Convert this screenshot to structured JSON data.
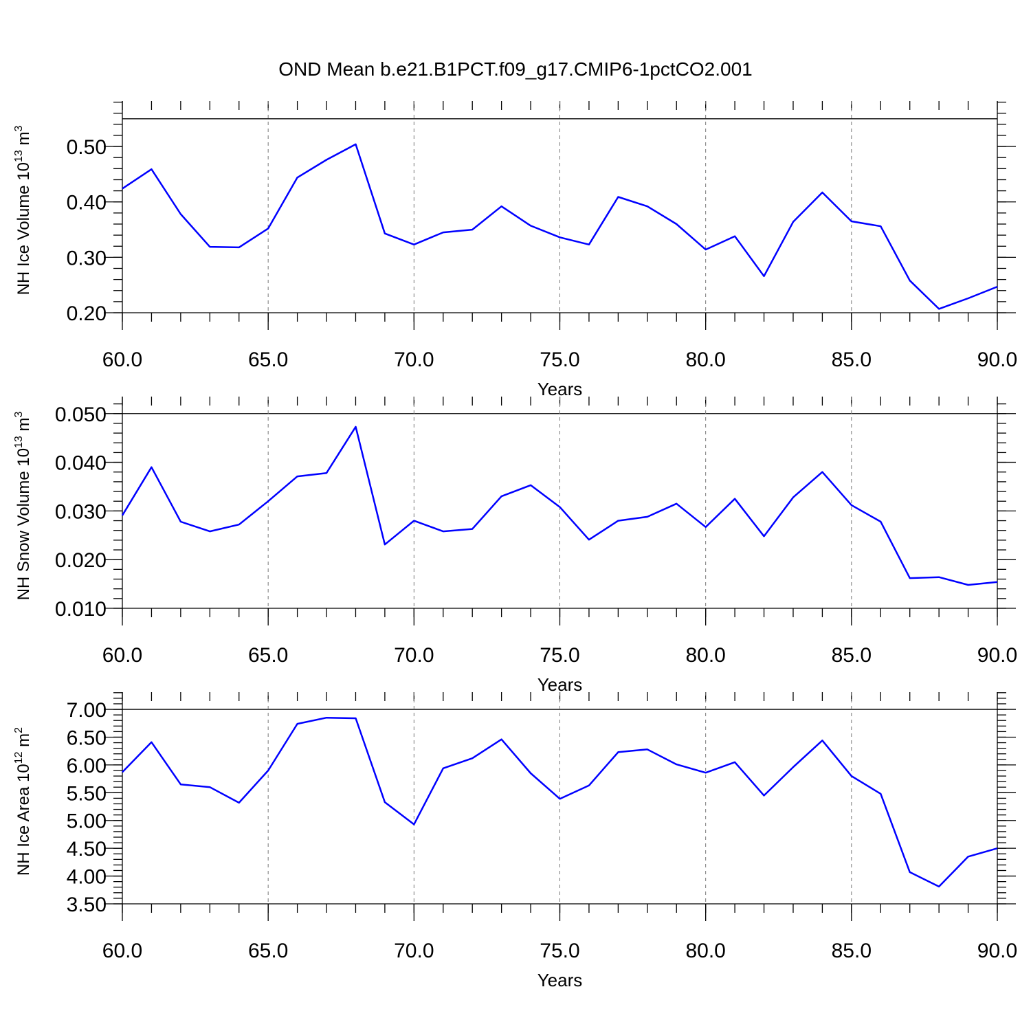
{
  "chart_data": [
    {
      "type": "line",
      "title": "OND Mean b.e21.B1PCT.f09_g17.CMIP6-1pctCO2.001",
      "xlabel": "Years",
      "ylabel_parts": [
        "NH Ice Volume 10",
        "13",
        " m",
        "3"
      ],
      "xlim": [
        60,
        90
      ],
      "xticks": [
        {
          "value": 60,
          "label": "60.0"
        },
        {
          "value": 65,
          "label": "65.0"
        },
        {
          "value": 70,
          "label": "70.0"
        },
        {
          "value": 75,
          "label": "75.0"
        },
        {
          "value": 80,
          "label": "80.0"
        },
        {
          "value": 85,
          "label": "85.0"
        },
        {
          "value": 90,
          "label": "90.0"
        }
      ],
      "ylim": [
        0.2,
        0.582
      ],
      "yticks": [
        {
          "value": 0.2,
          "label": "0.20"
        },
        {
          "value": 0.3,
          "label": "0.30"
        },
        {
          "value": 0.4,
          "label": "0.40"
        },
        {
          "value": 0.5,
          "label": "0.50"
        }
      ],
      "ref_line": 0.55,
      "grid": true,
      "x": [
        60,
        61,
        62,
        63,
        64,
        65,
        66,
        67,
        68,
        69,
        70,
        71,
        72,
        73,
        74,
        75,
        76,
        77,
        78,
        79,
        80,
        81,
        82,
        83,
        84,
        85,
        86,
        87,
        88,
        89,
        90
      ],
      "series": [
        {
          "color": "#0000ff",
          "values": [
            0.424,
            0.459,
            0.378,
            0.319,
            0.318,
            0.352,
            0.444,
            0.476,
            0.504,
            0.343,
            0.323,
            0.345,
            0.35,
            0.392,
            0.357,
            0.336,
            0.323,
            0.409,
            0.392,
            0.36,
            0.314,
            0.338,
            0.266,
            0.364,
            0.417,
            0.365,
            0.356,
            0.258,
            0.207,
            0.226,
            0.247
          ]
        }
      ]
    },
    {
      "type": "line",
      "xlabel": "Years",
      "ylabel_parts": [
        "NH Snow Volume 10",
        "13",
        " m",
        "3"
      ],
      "xlim": [
        60,
        90
      ],
      "xticks": [
        {
          "value": 60,
          "label": "60.0"
        },
        {
          "value": 65,
          "label": "65.0"
        },
        {
          "value": 70,
          "label": "70.0"
        },
        {
          "value": 75,
          "label": "75.0"
        },
        {
          "value": 80,
          "label": "80.0"
        },
        {
          "value": 85,
          "label": "85.0"
        },
        {
          "value": 90,
          "label": "90.0"
        }
      ],
      "ylim": [
        0.01,
        0.0535
      ],
      "yticks": [
        {
          "value": 0.01,
          "label": "0.010"
        },
        {
          "value": 0.02,
          "label": "0.020"
        },
        {
          "value": 0.03,
          "label": "0.030"
        },
        {
          "value": 0.04,
          "label": "0.040"
        },
        {
          "value": 0.05,
          "label": "0.050"
        }
      ],
      "ref_line": 0.05,
      "grid": true,
      "x": [
        60,
        61,
        62,
        63,
        64,
        65,
        66,
        67,
        68,
        69,
        70,
        71,
        72,
        73,
        74,
        75,
        76,
        77,
        78,
        79,
        80,
        81,
        82,
        83,
        84,
        85,
        86,
        87,
        88,
        89,
        90
      ],
      "series": [
        {
          "color": "#0000ff",
          "values": [
            0.0291,
            0.039,
            0.0278,
            0.0258,
            0.0272,
            0.032,
            0.0371,
            0.0378,
            0.0473,
            0.0231,
            0.028,
            0.0258,
            0.0263,
            0.033,
            0.0353,
            0.0308,
            0.0241,
            0.028,
            0.0288,
            0.0315,
            0.0267,
            0.0325,
            0.0248,
            0.0328,
            0.038,
            0.0312,
            0.0278,
            0.0162,
            0.0164,
            0.0148,
            0.0154
          ]
        }
      ]
    },
    {
      "type": "line",
      "xlabel": "Years",
      "ylabel_parts": [
        "NH Ice Area 10",
        "12",
        " m",
        "2"
      ],
      "xlim": [
        60,
        90
      ],
      "xticks": [
        {
          "value": 60,
          "label": "60.0"
        },
        {
          "value": 65,
          "label": "65.0"
        },
        {
          "value": 70,
          "label": "70.0"
        },
        {
          "value": 75,
          "label": "75.0"
        },
        {
          "value": 80,
          "label": "80.0"
        },
        {
          "value": 85,
          "label": "85.0"
        },
        {
          "value": 90,
          "label": "90.0"
        }
      ],
      "ylim": [
        3.5,
        7.31
      ],
      "yticks": [
        {
          "value": 3.5,
          "label": "3.50"
        },
        {
          "value": 4,
          "label": "4.00"
        },
        {
          "value": 4.5,
          "label": "4.50"
        },
        {
          "value": 5,
          "label": "5.00"
        },
        {
          "value": 5.5,
          "label": "5.50"
        },
        {
          "value": 6,
          "label": "6.00"
        },
        {
          "value": 6.5,
          "label": "6.50"
        },
        {
          "value": 7,
          "label": "7.00"
        }
      ],
      "ref_line": 7,
      "grid": true,
      "x": [
        60,
        61,
        62,
        63,
        64,
        65,
        66,
        67,
        68,
        69,
        70,
        71,
        72,
        73,
        74,
        75,
        76,
        77,
        78,
        79,
        80,
        81,
        82,
        83,
        84,
        85,
        86,
        87,
        88,
        89,
        90
      ],
      "series": [
        {
          "color": "#0000ff",
          "values": [
            5.87,
            6.41,
            5.65,
            5.6,
            5.32,
            5.9,
            6.74,
            6.85,
            6.84,
            5.33,
            4.93,
            5.94,
            6.12,
            6.46,
            5.85,
            5.39,
            5.63,
            6.23,
            6.28,
            6.01,
            5.86,
            6.05,
            5.45,
            5.96,
            6.44,
            5.8,
            5.48,
            4.07,
            3.81,
            4.35,
            4.5
          ]
        }
      ]
    }
  ]
}
